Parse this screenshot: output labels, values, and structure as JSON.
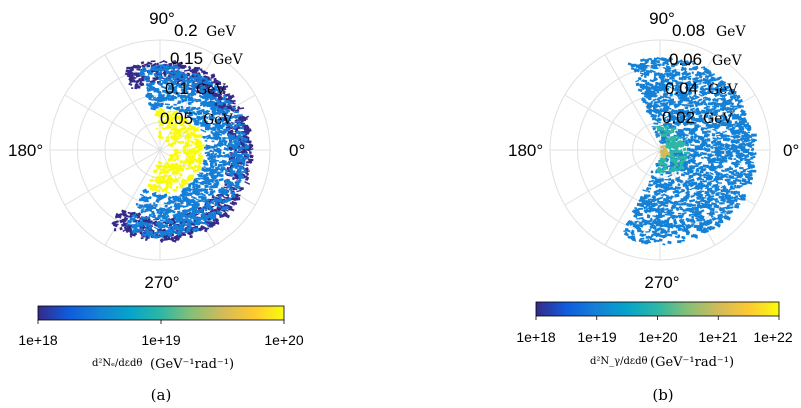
{
  "colors": {
    "cmap": [
      "#352a87",
      "#0f5cdd",
      "#1481d6",
      "#06a4ca",
      "#2eb7a4",
      "#87bf77",
      "#d1bb59",
      "#fec832",
      "#f9fb0e"
    ],
    "grid": "#e0e0e0"
  },
  "chart_data": [
    {
      "type": "polar-heatmap",
      "panel_label": "(a)",
      "angle_labels": [
        "90°",
        "180°",
        "0°",
        "270°"
      ],
      "radial_tick_values": [
        "0.2",
        "0.15",
        "0.1",
        "0.05"
      ],
      "radial_unit": "GeV",
      "rmax": 0.2,
      "colorbar": {
        "scale": "log",
        "ticks": [
          "1e+18",
          "1e+19",
          "1e+20"
        ],
        "range": [
          1e+18,
          1e+20
        ],
        "label_math": "d²Nₑ/dεdθ",
        "label_units": "(GeV⁻¹rad⁻¹)"
      },
      "regions": [
        {
          "level": 1e+18,
          "r_inner": 0.125,
          "r_outer": 0.165,
          "theta_from": -125,
          "theta_to": 115
        },
        {
          "level": 3e+18,
          "r_inner": 0.08,
          "r_outer": 0.155,
          "theta_from": -115,
          "theta_to": 105
        },
        {
          "level": 1e+20,
          "r_inner": 0.02,
          "r_outer": 0.075,
          "theta_from": -110,
          "theta_to": 100
        }
      ]
    },
    {
      "type": "polar-heatmap",
      "panel_label": "(b)",
      "angle_labels": [
        "90°",
        "180°",
        "0°",
        "270°"
      ],
      "radial_tick_values": [
        "0.08",
        "0.06",
        "0.04",
        "0.02"
      ],
      "radial_unit": "GeV",
      "rmax": 0.08,
      "colorbar": {
        "scale": "log",
        "ticks": [
          "1e+18",
          "1e+19",
          "1e+20",
          "1e+21",
          "1e+22"
        ],
        "range": [
          1e+18,
          1e+22
        ],
        "label_math": "d²N_γ/dεdθ",
        "label_units": "(GeV⁻¹rad⁻¹)"
      },
      "regions": [
        {
          "level": 1e+19,
          "r_inner": 0.006,
          "r_outer": 0.068,
          "theta_from": -115,
          "theta_to": 110
        },
        {
          "level": 1e+20,
          "r_inner": 0.005,
          "r_outer": 0.018,
          "theta_from": -105,
          "theta_to": 100
        },
        {
          "level": 1e+21,
          "r_inner": 0.0,
          "r_outer": 0.004,
          "theta_from": -100,
          "theta_to": 100
        }
      ]
    }
  ]
}
